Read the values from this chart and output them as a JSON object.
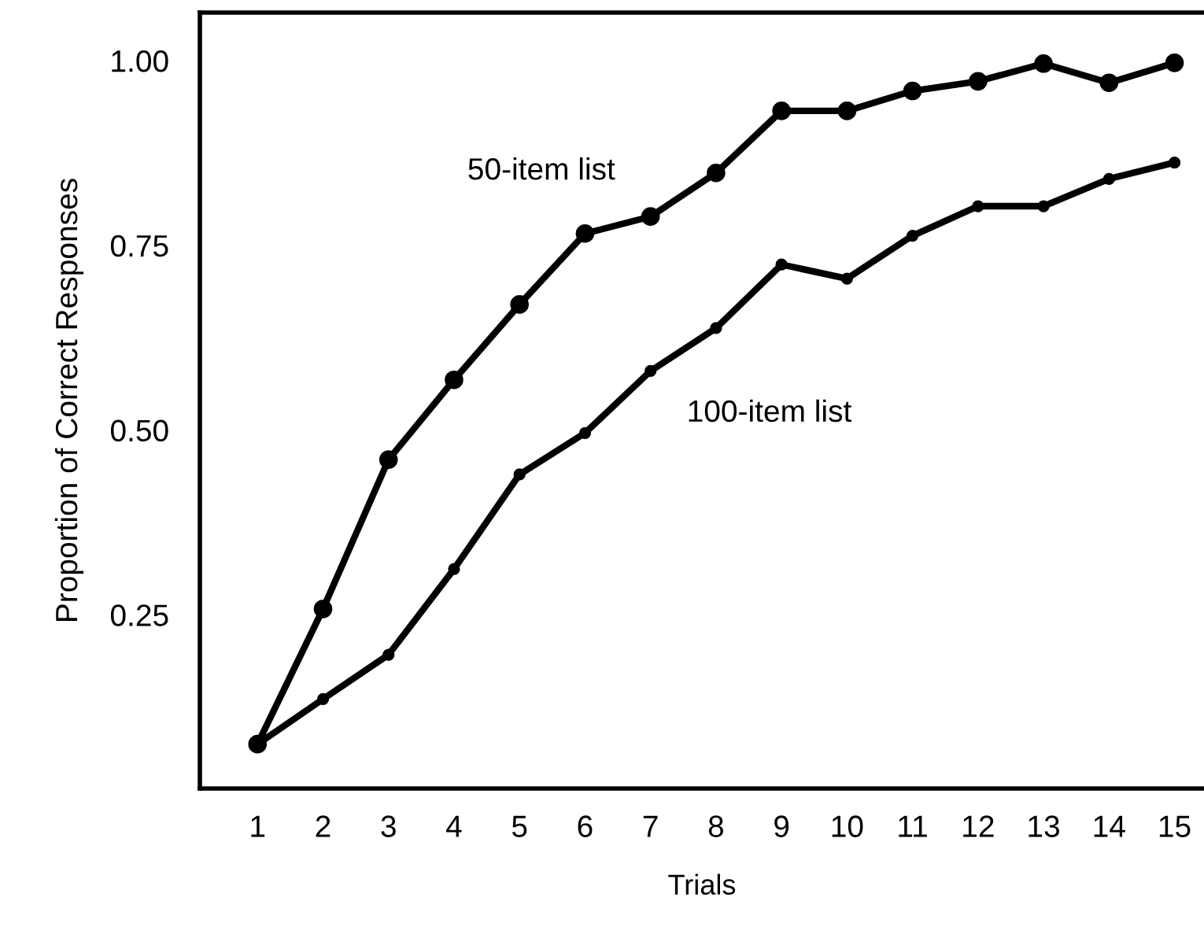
{
  "chart_data": {
    "type": "line",
    "xlabel": "Trials",
    "ylabel": "Proportion of Correct Responses",
    "x": [
      1,
      2,
      3,
      4,
      5,
      6,
      7,
      8,
      9,
      10,
      11,
      12,
      13,
      14,
      15
    ],
    "series": [
      {
        "name": "50-item list",
        "color": "#000000",
        "values": [
          0.075,
          0.258,
          0.46,
          0.568,
          0.67,
          0.766,
          0.789,
          0.848,
          0.932,
          0.932,
          0.959,
          0.972,
          0.996,
          0.97,
          0.997
        ]
      },
      {
        "name": "100-item list",
        "color": "#000000",
        "values": [
          0.075,
          0.136,
          0.196,
          0.312,
          0.44,
          0.496,
          0.58,
          0.638,
          0.724,
          0.705,
          0.763,
          0.803,
          0.803,
          0.84,
          0.862
        ]
      }
    ],
    "xlim": [
      0.12,
      15.45
    ],
    "ylim": [
      0.015,
      1.065
    ],
    "xticks": [
      1,
      2,
      3,
      4,
      5,
      6,
      7,
      8,
      9,
      10,
      11,
      12,
      13,
      14,
      15
    ],
    "yticks": [
      {
        "value": 0.25,
        "label": "0.25"
      },
      {
        "value": 0.5,
        "label": "0.50"
      },
      {
        "value": 0.75,
        "label": "0.75"
      },
      {
        "value": 1.0,
        "label": "1.00"
      }
    ],
    "grid": false,
    "legend": false,
    "marker": "circle",
    "line_style": "solid"
  }
}
